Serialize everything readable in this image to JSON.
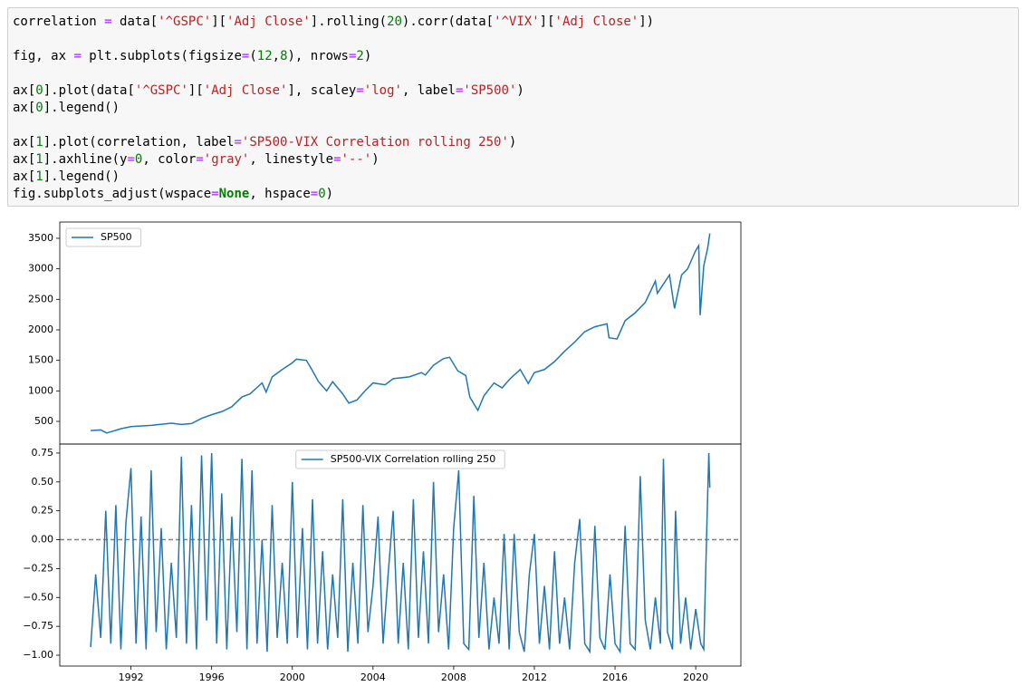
{
  "code": {
    "blocks": [
      [
        "correlation = data['^GSPC']['Adj Close'].rolling(20).corr(data['^VIX']['Adj Close'])"
      ],
      [
        "fig, ax = plt.subplots(figsize=(12,8), nrows=2)"
      ],
      [
        "ax[0].plot(data['^GSPC']['Adj Close'], scaley='log', label='SP500')",
        "ax[0].legend()"
      ],
      [
        "ax[1].plot(correlation, label='SP500-VIX Correlation rolling 250')",
        "ax[1].axhline(y=0, color='gray', linestyle='--')",
        "ax[1].legend()",
        "fig.subplots_adjust(wspace=None, hspace=0)"
      ]
    ]
  },
  "chart_data": [
    {
      "type": "line",
      "legend": "upper left",
      "xlim": [
        1988.47,
        2022.24
      ],
      "ylim": [
        129,
        3767
      ],
      "yticks": [
        500,
        1000,
        1500,
        2000,
        2500,
        3000,
        3500
      ],
      "x": [
        1990.0,
        1990.5,
        1990.8,
        1991.0,
        1991.5,
        1992,
        1993,
        1994,
        1994.5,
        1995,
        1995.5,
        1996,
        1996.5,
        1997,
        1997.5,
        1997.9,
        1998.5,
        1998.7,
        1999,
        1999.5,
        2000,
        2000.2,
        2000.7,
        2001,
        2001.3,
        2001.7,
        2002,
        2002.5,
        2002.8,
        2003.2,
        2003.6,
        2004,
        2004.6,
        2005,
        2005.8,
        2006.4,
        2006.6,
        2007,
        2007.5,
        2007.8,
        2008.2,
        2008.6,
        2008.8,
        2009.2,
        2009.5,
        2010,
        2010.4,
        2010.8,
        2011.3,
        2011.7,
        2012,
        2012.5,
        2013,
        2013.5,
        2014,
        2014.5,
        2015,
        2015.6,
        2015.7,
        2016.1,
        2016.5,
        2017,
        2017.5,
        2018,
        2018.1,
        2018.7,
        2018.95,
        2019.3,
        2019.6,
        2020.0,
        2020.15,
        2020.22,
        2020.4,
        2020.6,
        2020.7
      ],
      "series": [
        {
          "name": "SP500",
          "color": "#1f77b4",
          "values": [
            350,
            360,
            310,
            330,
            380,
            415,
            435,
            470,
            450,
            465,
            550,
            610,
            660,
            740,
            900,
            950,
            1130,
            980,
            1230,
            1350,
            1460,
            1520,
            1500,
            1330,
            1150,
            1000,
            1150,
            950,
            800,
            850,
            1000,
            1130,
            1100,
            1200,
            1230,
            1300,
            1260,
            1420,
            1530,
            1550,
            1330,
            1250,
            900,
            680,
            920,
            1130,
            1050,
            1200,
            1350,
            1120,
            1300,
            1350,
            1480,
            1650,
            1800,
            1970,
            2050,
            2100,
            1870,
            1850,
            2150,
            2280,
            2450,
            2800,
            2600,
            2900,
            2350,
            2900,
            3000,
            3300,
            3380,
            2240,
            3050,
            3350,
            3580
          ]
        }
      ]
    },
    {
      "type": "line",
      "legend": "upper center",
      "xlim": [
        1988.47,
        2022.24
      ],
      "ylim": [
        -1.094,
        0.828
      ],
      "xticks": [
        1992,
        1996,
        2000,
        2004,
        2008,
        2012,
        2016,
        2020
      ],
      "yticks": [
        {
          "value": -1,
          "label": "−1.00"
        },
        {
          "value": -0.75,
          "label": "−0.75"
        },
        {
          "value": -0.5,
          "label": "−0.50"
        },
        {
          "value": -0.25,
          "label": "−0.25"
        },
        {
          "value": 0,
          "label": "0.00"
        },
        {
          "value": 0.25,
          "label": "0.25"
        },
        {
          "value": 0.5,
          "label": "0.50"
        },
        {
          "value": 0.75,
          "label": "0.75"
        }
      ],
      "axhline": {
        "y": 0,
        "color": "gray"
      },
      "x": [
        1990.0,
        1990.25,
        1990.5,
        1990.75,
        1991.0,
        1991.25,
        1991.5,
        1991.75,
        1992.0,
        1992.25,
        1992.5,
        1992.75,
        1993.0,
        1993.25,
        1993.5,
        1993.75,
        1994.0,
        1994.25,
        1994.5,
        1994.75,
        1995.0,
        1995.25,
        1995.5,
        1995.75,
        1996.0,
        1996.25,
        1996.5,
        1996.75,
        1997.0,
        1997.25,
        1997.5,
        1997.75,
        1998.0,
        1998.25,
        1998.5,
        1998.75,
        1999.0,
        1999.25,
        1999.5,
        1999.75,
        2000.0,
        2000.25,
        2000.5,
        2000.75,
        2001.0,
        2001.25,
        2001.5,
        2001.75,
        2002.0,
        2002.25,
        2002.5,
        2002.75,
        2003.0,
        2003.25,
        2003.5,
        2003.75,
        2004.0,
        2004.25,
        2004.5,
        2004.75,
        2005.0,
        2005.25,
        2005.5,
        2005.75,
        2006.0,
        2006.25,
        2006.5,
        2006.75,
        2007.0,
        2007.25,
        2007.5,
        2007.75,
        2008.0,
        2008.25,
        2008.5,
        2008.75,
        2009.0,
        2009.25,
        2009.5,
        2009.75,
        2010.0,
        2010.25,
        2010.5,
        2010.75,
        2011.0,
        2011.25,
        2011.5,
        2011.75,
        2012.0,
        2012.25,
        2012.5,
        2012.75,
        2013.0,
        2013.25,
        2013.5,
        2013.75,
        2014.0,
        2014.25,
        2014.5,
        2014.75,
        2015.0,
        2015.25,
        2015.5,
        2015.75,
        2016.0,
        2016.25,
        2016.5,
        2016.75,
        2017.0,
        2017.25,
        2017.5,
        2017.75,
        2018.0,
        2018.25,
        2018.4,
        2018.6,
        2018.85,
        2019.0,
        2019.25,
        2019.5,
        2019.75,
        2020.0,
        2020.25,
        2020.4,
        2020.55,
        2020.65,
        2020.7
      ],
      "series": [
        {
          "name": "SP500-VIX Correlation rolling 250",
          "color": "#1f77b4",
          "values": [
            -0.93,
            -0.3,
            -0.85,
            0.25,
            -0.9,
            0.3,
            -0.95,
            0.15,
            0.62,
            -0.9,
            0.2,
            -0.95,
            0.6,
            -0.8,
            0.1,
            -0.95,
            -0.2,
            -0.85,
            0.72,
            -0.9,
            0.3,
            -0.95,
            0.73,
            -0.7,
            0.75,
            -0.9,
            0.4,
            -0.95,
            0.2,
            -0.8,
            0.7,
            -0.95,
            0.6,
            -0.9,
            0.0,
            -0.97,
            0.3,
            -0.85,
            -0.2,
            -0.9,
            0.5,
            -0.85,
            0.1,
            -0.95,
            0.35,
            -0.9,
            -0.1,
            -0.95,
            -0.3,
            -0.85,
            0.35,
            -0.97,
            -0.2,
            -0.9,
            0.3,
            -0.8,
            -0.4,
            0.2,
            -0.9,
            -0.3,
            0.25,
            -0.9,
            -0.2,
            -0.95,
            0.35,
            -0.85,
            -0.1,
            -0.9,
            0.5,
            -0.8,
            -0.3,
            -0.95,
            0.1,
            0.6,
            -0.9,
            -0.95,
            0.38,
            -0.85,
            -0.2,
            -0.95,
            -0.5,
            -0.9,
            0.05,
            -0.95,
            0.05,
            -0.8,
            -0.97,
            -0.3,
            0.05,
            -0.9,
            -0.4,
            -0.95,
            -0.1,
            -0.9,
            -0.5,
            -0.95,
            -0.2,
            0.18,
            -0.9,
            -0.97,
            0.12,
            -0.85,
            -0.95,
            -0.3,
            -0.9,
            -0.97,
            0.12,
            -0.9,
            -0.95,
            0.55,
            -0.7,
            -0.95,
            -0.5,
            -0.9,
            0.7,
            -0.8,
            -0.95,
            0.25,
            -0.9,
            -0.5,
            -0.95,
            -0.6,
            -0.9,
            -0.95,
            0.1,
            0.75,
            0.45
          ]
        }
      ]
    }
  ]
}
